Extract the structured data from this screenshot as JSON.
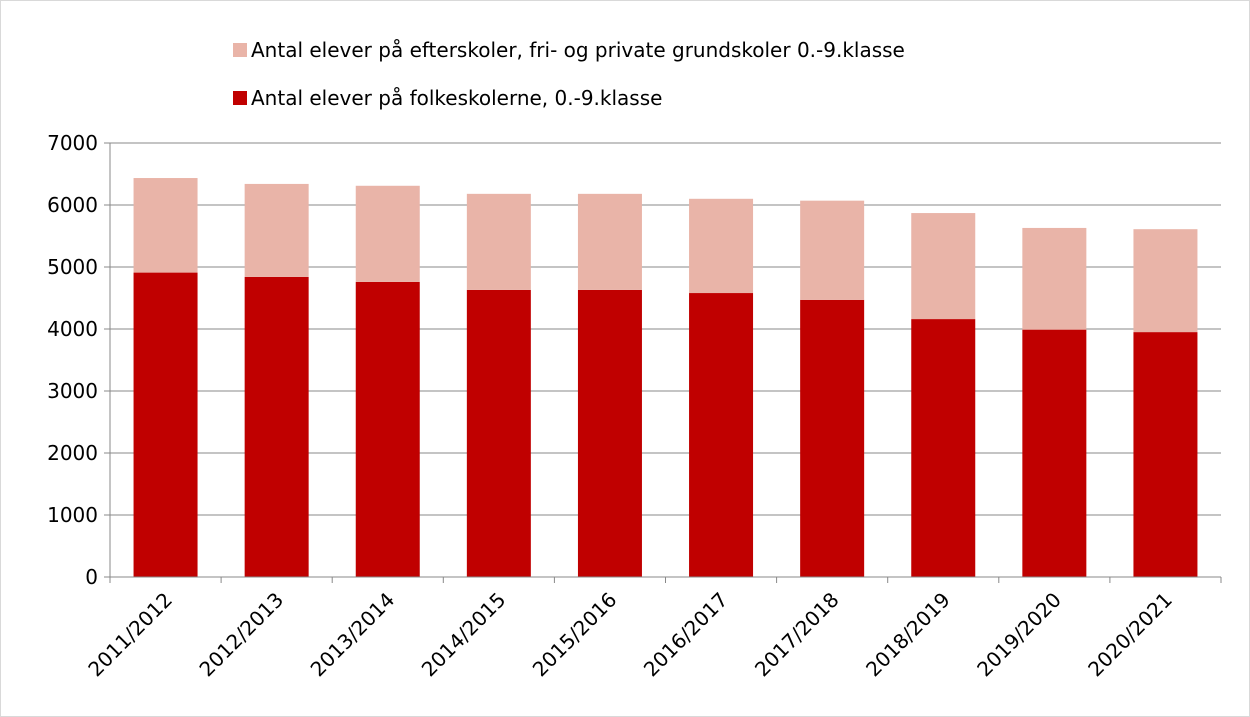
{
  "chart_data": {
    "type": "stacked_bar",
    "categories": [
      "2011/2012",
      "2012/2013",
      "2013/2014",
      "2014/2015",
      "2015/2016",
      "2016/2017",
      "2017/2018",
      "2018/2019",
      "2019/2020",
      "2020/2021"
    ],
    "series": [
      {
        "name": "Antal elever på folkeskolerne, 0.-9.klasse",
        "color": "#c00000",
        "values": [
          4910,
          4840,
          4760,
          4630,
          4630,
          4580,
          4470,
          4160,
          3990,
          3950
        ]
      },
      {
        "name": "Antal elever på efterskoler, fri- og private grundskoler 0.-9.klasse",
        "color": "#e9b4a8",
        "values": [
          1525,
          1500,
          1550,
          1550,
          1550,
          1520,
          1600,
          1710,
          1640,
          1660
        ]
      }
    ],
    "ylim": [
      0,
      7000
    ],
    "yticks": [
      0,
      1000,
      2000,
      3000,
      4000,
      5000,
      6000,
      7000
    ],
    "grid": true
  }
}
